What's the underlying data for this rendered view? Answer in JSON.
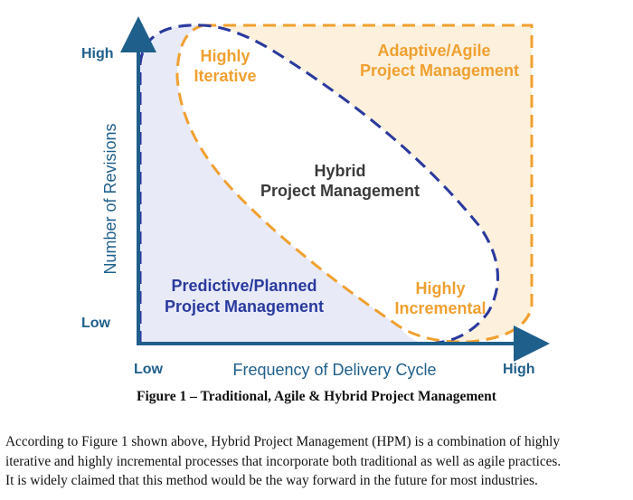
{
  "diagram": {
    "y_axis": {
      "title": "Number of Revisions",
      "high": "High",
      "low": "Low"
    },
    "x_axis": {
      "title": "Frequency of Delivery Cycle",
      "low": "Low",
      "high": "High"
    },
    "regions": {
      "adaptive": [
        "Adaptive/Agile",
        "Project Management"
      ],
      "iterative": [
        "Highly",
        "Iterative"
      ],
      "hybrid": [
        "Hybrid",
        "Project Management"
      ],
      "predictive": [
        "Predictive/Planned",
        "Project Management"
      ],
      "incremental": [
        "Highly",
        "Incremental"
      ]
    },
    "colors": {
      "axis": "#1f5f8b",
      "predictive": "#2a3a9e",
      "predictive_fill": "#e8eaf8",
      "adaptive": "#f0a030",
      "adaptive_fill": "#fdf0dc",
      "hybrid_text": "#3a3a3a"
    }
  },
  "caption": "Figure 1 – Traditional, Agile & Hybrid Project Management",
  "paragraph": [
    "According to Figure 1 shown above, Hybrid Project Management (HPM) is a combination of highly",
    "iterative and highly incremental processes that incorporate both traditional as well as agile practices.",
    "It is widely claimed that this method would be the way forward in the future for most industries."
  ]
}
